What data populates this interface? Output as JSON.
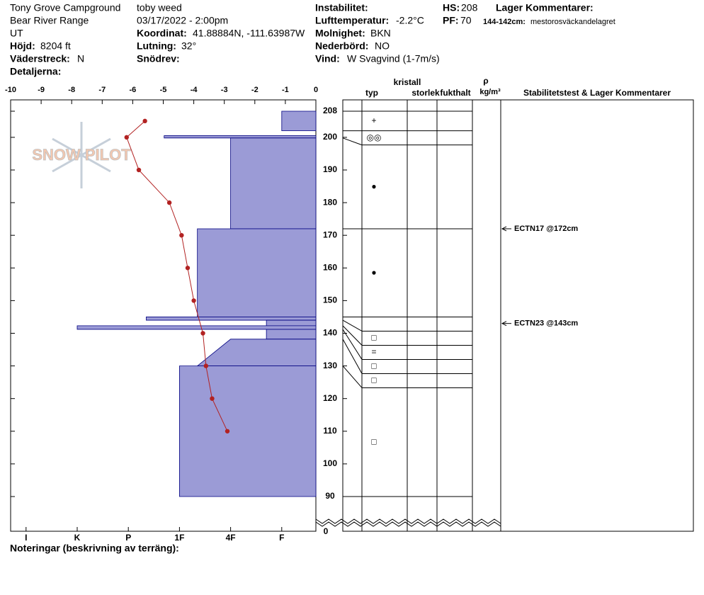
{
  "header": {
    "location": "Tony Grove Campground",
    "range": "Bear River Range",
    "state": "UT",
    "elevation_label": "Höjd:",
    "elevation": "8204 ft",
    "aspect_label": "Väderstreck:",
    "aspect": "N",
    "details_label": "Detaljerna:",
    "observer": "toby weed",
    "datetime": "03/17/2022 - 2:00pm",
    "coord_label": "Koordinat:",
    "coord": "41.88884N, -111.63987W",
    "slope_label": "Lutning:",
    "slope": "32°",
    "drift_label": "Snödrev:",
    "instability_label": "Instabilitet:",
    "airtemp_label": "Lufttemperatur:",
    "airtemp": "-2.2°C",
    "sky_label": "Molnighet:",
    "sky": "BKN",
    "precip_label": "Nederbörd:",
    "precip": "NO",
    "wind_label": "Vind:",
    "wind": "W Svagvind (1-7m/s)",
    "hs_label": "HS:",
    "hs": "208",
    "pf_label": "PF:",
    "pf": "70",
    "layer_comments_label": "Lager Kommentarer:",
    "layer_comment_range": "144-142cm:",
    "layer_comment": "mestorosväckandelagret",
    "logo": "SNOW PILOT",
    "notes_label": "Noteringar (beskrivning av terräng):"
  },
  "chart_data": {
    "type": "snow-profile",
    "xlim": [
      -10,
      0
    ],
    "xticks": [
      -10,
      -9,
      -8,
      -7,
      -6,
      -5,
      -4,
      -3,
      -2,
      -1,
      0
    ],
    "ylim": [
      90,
      208
    ],
    "yticks": [
      90,
      100,
      110,
      120,
      130,
      140,
      150,
      160,
      170,
      180,
      190,
      200,
      208
    ],
    "ground_tick": 0,
    "hardness_ticks": [
      {
        "value": 6,
        "label": "I"
      },
      {
        "value": 5,
        "label": "K"
      },
      {
        "value": 4,
        "label": "P"
      },
      {
        "value": 3,
        "label": "1F"
      },
      {
        "value": 2,
        "label": "4F"
      },
      {
        "value": 1,
        "label": "F"
      }
    ],
    "temperature": {
      "color": "#b22222",
      "heights": [
        205,
        200,
        190,
        180,
        170,
        160,
        150,
        140,
        130,
        120,
        110
      ],
      "values": [
        -5.6,
        -6.2,
        -5.8,
        -4.8,
        -4.4,
        -4.2,
        -4.0,
        -3.7,
        -3.6,
        -3.4,
        -2.9
      ]
    },
    "layer_color": "#9b9bd6",
    "layers": [
      {
        "top": 208,
        "bottom": 202,
        "hardness": 1,
        "grain": "+"
      },
      {
        "top": 200.5,
        "bottom": 199.8,
        "hardness": 3.3,
        "grain": "◎◎"
      },
      {
        "top": 199.8,
        "bottom": 172,
        "hardness": 2,
        "grain": "●"
      },
      {
        "top": 172,
        "bottom": 145,
        "hardness": 2.65,
        "grain": "●"
      },
      {
        "top": 145,
        "bottom": 144,
        "hardness": 3.65,
        "grain": null
      },
      {
        "top": 144,
        "bottom": 142.3,
        "hardness": 1.3,
        "grain": "□"
      },
      {
        "top": 142.3,
        "bottom": 141.2,
        "hardness": 5,
        "grain": "="
      },
      {
        "top": 141.2,
        "bottom": 138.2,
        "hardness": 1.3,
        "grain": "□"
      },
      {
        "top": 138.2,
        "bottom": 130,
        "hardness": 2,
        "hardness_bottom": 2.65,
        "grain": "□"
      },
      {
        "top": 130,
        "bottom": 90,
        "hardness": 3,
        "grain": "□"
      }
    ],
    "columns": {
      "crystal": "kristall",
      "type": "typ",
      "size": "storlek",
      "moisture": "fukthalt",
      "density": "ρ",
      "density_unit": "kg/m³",
      "comments": "Stabilitetstest & Lager Kommentarer"
    },
    "tests": [
      {
        "label": "ECTN17 @172cm",
        "height": 172
      },
      {
        "label": "ECTN23 @143cm",
        "height": 143
      }
    ]
  }
}
